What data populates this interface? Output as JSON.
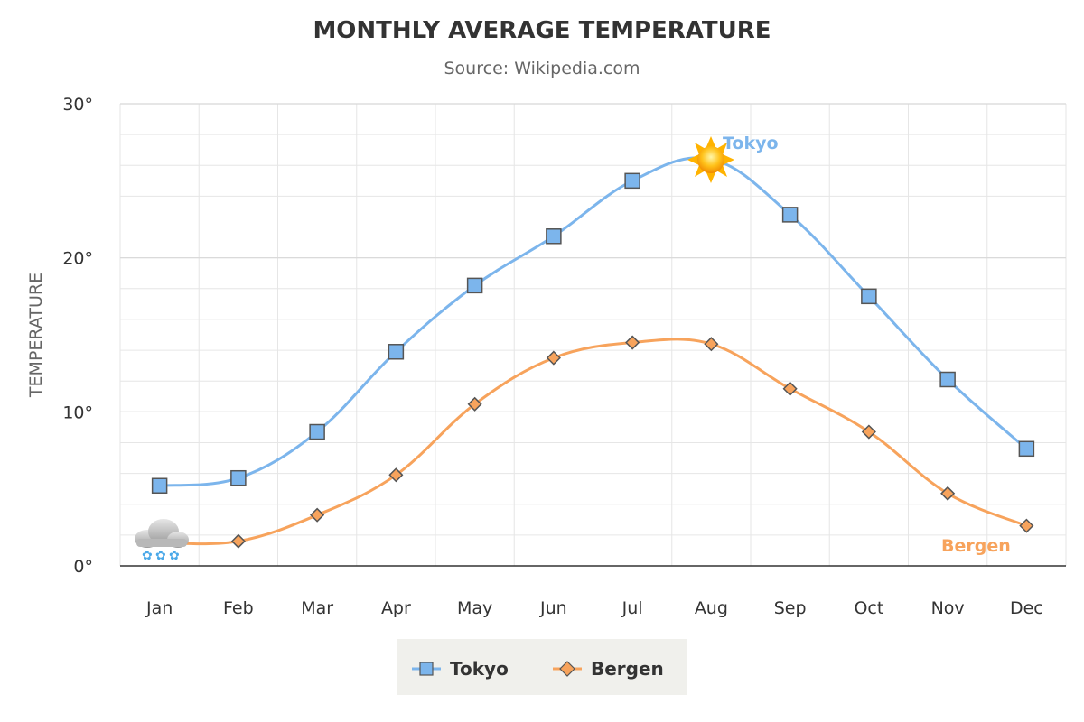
{
  "chart_data": {
    "type": "line",
    "title": "MONTHLY AVERAGE TEMPERATURE",
    "subtitle": "Source: Wikipedia.com",
    "ylabel": "TEMPERATURE",
    "xlabel": "",
    "categories": [
      "Jan",
      "Feb",
      "Mar",
      "Apr",
      "May",
      "Jun",
      "Jul",
      "Aug",
      "Sep",
      "Oct",
      "Nov",
      "Dec"
    ],
    "ylim": [
      0,
      30
    ],
    "yticks": [
      0,
      10,
      20,
      30
    ],
    "ytick_labels": [
      "0°",
      "10°",
      "20°",
      "30°"
    ],
    "grid": true,
    "legend": "bottom-center",
    "series": [
      {
        "name": "Tokyo",
        "color": "#7cb5ec",
        "marker": "square",
        "values": [
          5.2,
          5.7,
          8.7,
          13.9,
          18.2,
          21.4,
          25.0,
          26.4,
          22.8,
          17.5,
          12.1,
          7.6
        ],
        "annotation": {
          "index": 7,
          "icon": "sun-icon"
        },
        "end_label": "Tokyo"
      },
      {
        "name": "Bergen",
        "color": "#f7a35c",
        "marker": "diamond",
        "values": [
          1.5,
          1.6,
          3.3,
          5.9,
          10.5,
          13.5,
          14.5,
          14.4,
          11.5,
          8.7,
          4.7,
          2.6
        ],
        "annotation": {
          "index": 0,
          "icon": "snow-cloud-icon"
        },
        "end_label": "Bergen"
      }
    ]
  }
}
